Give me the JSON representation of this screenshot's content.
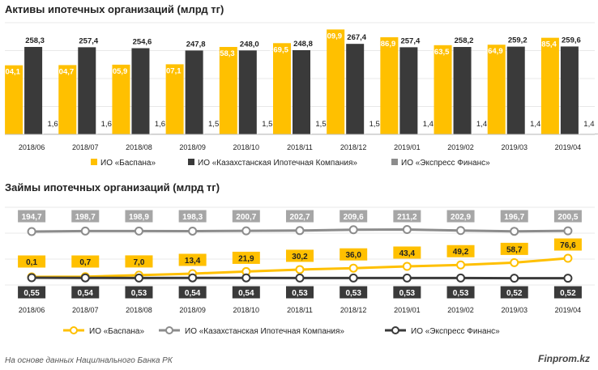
{
  "source_note": "На основе данных Нацилнального Банка РК",
  "brand": "Finprom.kz",
  "colors": {
    "baspana": "#FFC000",
    "kik": "#3A3A3A",
    "express": "#8C8C8C",
    "kik_line": "#8C8C8C",
    "express_line": "#3A3A3A",
    "grid": "#E8E8E8",
    "label_bg_grey": "#A6A6A6"
  },
  "chart_data": [
    {
      "type": "bar",
      "title": "Активы ипотечных организаций (млрд тг)",
      "categories": [
        "2018/06",
        "2018/07",
        "2018/08",
        "2018/09",
        "2018/10",
        "2018/11",
        "2018/12",
        "2019/01",
        "2019/02",
        "2019/03",
        "2019/04"
      ],
      "series": [
        {
          "name": "ИО «Баспана»",
          "values": [
            204.1,
            204.7,
            205.9,
            207.1,
            258.3,
            269.5,
            309.9,
            286.9,
            263.5,
            264.9,
            285.4
          ],
          "labels": [
            "204,1",
            "204,7",
            "205,9",
            "207,1",
            "258,3",
            "269,5",
            "309,9",
            "286,9",
            "263,5",
            "264,9",
            "285,4"
          ]
        },
        {
          "name": "ИО «Казахстанская Ипотечная Компания»",
          "values": [
            258.3,
            257.4,
            254.6,
            247.8,
            248.0,
            248.8,
            267.4,
            257.4,
            258.2,
            259.2,
            259.6
          ],
          "labels": [
            "258,3",
            "257,4",
            "254,6",
            "247,8",
            "248,0",
            "248,8",
            "267,4",
            "257,4",
            "258,2",
            "259,2",
            "259,6"
          ]
        },
        {
          "name": "ИО «Экспресс Финанс»",
          "values": [
            1.6,
            1.6,
            1.6,
            1.5,
            1.5,
            1.5,
            1.5,
            1.4,
            1.4,
            1.4,
            1.4
          ],
          "labels": [
            "1,6",
            "1,6",
            "1,6",
            "1,5",
            "1,5",
            "1,5",
            "1,5",
            "1,4",
            "1,4",
            "1,4",
            "1,4"
          ]
        }
      ],
      "ylim": [
        0,
        330
      ],
      "legend_position": "bottom"
    },
    {
      "type": "line",
      "title": "Займы ипотечных организаций (млрд тг)",
      "categories": [
        "2018/06",
        "2018/07",
        "2018/08",
        "2018/09",
        "2018/10",
        "2018/11",
        "2018/12",
        "2019/01",
        "2019/02",
        "2019/03",
        "2019/04"
      ],
      "series": [
        {
          "name": "ИО «Баспана»",
          "values": [
            0.1,
            0.7,
            7.0,
            13.4,
            21.9,
            30.2,
            36.0,
            43.4,
            49.2,
            58.7,
            76.6
          ],
          "labels": [
            "0,1",
            "0,7",
            "7,0",
            "13,4",
            "21,9",
            "30,2",
            "36,0",
            "43,4",
            "49,2",
            "58,7",
            "76,6"
          ]
        },
        {
          "name": "ИО «Казахстанская Ипотечная Компания»",
          "values": [
            194.7,
            198.7,
            198.9,
            198.3,
            200.7,
            202.7,
            209.6,
            211.2,
            202.9,
            196.7,
            200.5
          ],
          "labels": [
            "194,7",
            "198,7",
            "198,9",
            "198,3",
            "200,7",
            "202,7",
            "209,6",
            "211,2",
            "202,9",
            "196,7",
            "200,5"
          ]
        },
        {
          "name": "ИО «Экспресс Финанс»",
          "values": [
            0.55,
            0.54,
            0.53,
            0.54,
            0.54,
            0.53,
            0.53,
            0.53,
            0.53,
            0.52,
            0.52
          ],
          "labels": [
            "0,55",
            "0,54",
            "0,53",
            "0,54",
            "0,54",
            "0,53",
            "0,53",
            "0,53",
            "0,53",
            "0,52",
            "0,52"
          ]
        }
      ],
      "ylim": [
        0,
        220
      ],
      "legend_position": "bottom"
    }
  ]
}
